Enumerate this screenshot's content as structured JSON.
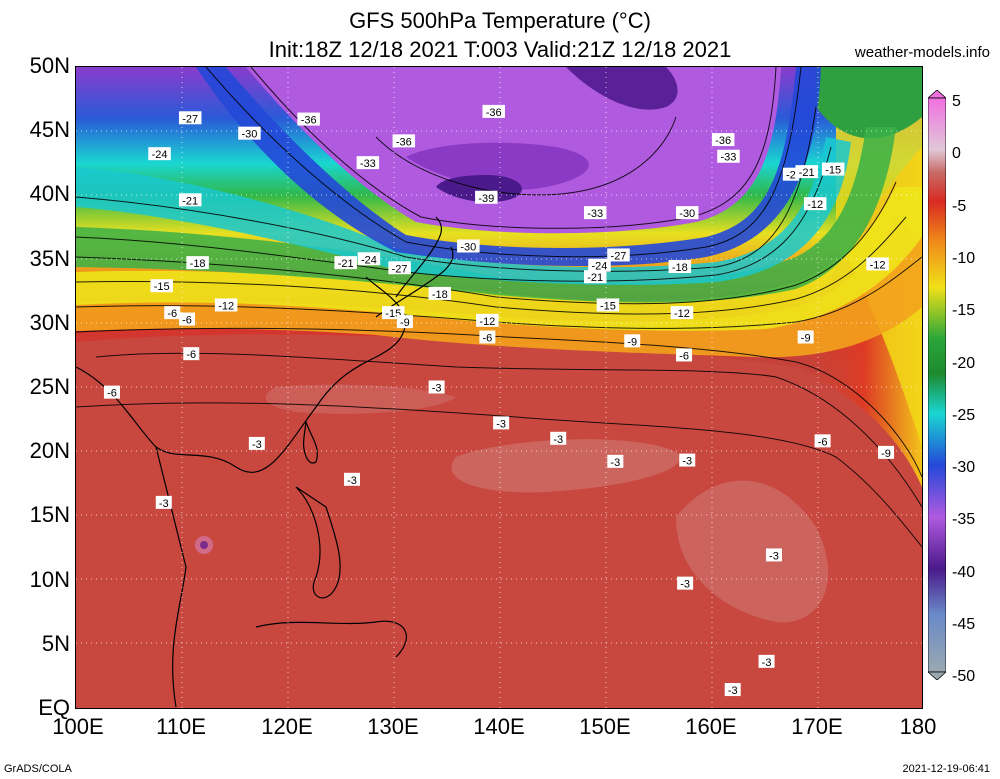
{
  "title_line1": "GFS 500hPa Temperature (°C)",
  "title_line2": "Init:18Z 12/18 2021 T:003 Valid:21Z 12/18 2021",
  "site": "weather-models.info",
  "footer_left": "GrADS/COLA",
  "footer_right": "2021-12-19-06:41",
  "lat_labels": [
    "50N",
    "45N",
    "40N",
    "35N",
    "30N",
    "25N",
    "20N",
    "15N",
    "10N",
    "5N",
    "EQ"
  ],
  "lon_labels": [
    "100E",
    "110E",
    "120E",
    "130E",
    "140E",
    "150E",
    "160E",
    "170E",
    "180"
  ],
  "colorbar_labels": [
    "5",
    "0",
    "-5",
    "-10",
    "-15",
    "-20",
    "-25",
    "-30",
    "-35",
    "-40",
    "-45",
    "-50"
  ],
  "colors": {
    "warm_dark": "#b94a44",
    "warm_mid": "#d8322a",
    "orange": "#f07a1a",
    "yellow": "#f2e60c",
    "green": "#22a43a",
    "cyan": "#1ad6d2",
    "blue": "#2448d8",
    "purple": "#a24ad6",
    "deep_purple": "#4a1a8a"
  },
  "contour_labels": [
    {
      "text": "-27",
      "lon": 110.8,
      "lat": 46.0
    },
    {
      "text": "-30",
      "lon": 116.4,
      "lat": 44.8
    },
    {
      "text": "-36",
      "lon": 122.0,
      "lat": 45.9
    },
    {
      "text": "-36",
      "lon": 139.5,
      "lat": 46.5
    },
    {
      "text": "-36",
      "lon": 131.0,
      "lat": 44.2
    },
    {
      "text": "-33",
      "lon": 127.6,
      "lat": 42.5
    },
    {
      "text": "-39",
      "lon": 138.8,
      "lat": 39.8
    },
    {
      "text": "-36",
      "lon": 161.2,
      "lat": 44.3
    },
    {
      "text": "-33",
      "lon": 161.7,
      "lat": 43.0
    },
    {
      "text": "-2",
      "lon": 167.6,
      "lat": 41.6
    },
    {
      "text": "-21",
      "lon": 169.1,
      "lat": 41.8
    },
    {
      "text": "-15",
      "lon": 171.6,
      "lat": 42.0
    },
    {
      "text": "-12",
      "lon": 169.9,
      "lat": 39.3
    },
    {
      "text": "-24",
      "lon": 107.9,
      "lat": 43.2
    },
    {
      "text": "-21",
      "lon": 110.8,
      "lat": 39.6
    },
    {
      "text": "-33",
      "lon": 149.1,
      "lat": 38.6
    },
    {
      "text": "-30",
      "lon": 157.8,
      "lat": 38.6
    },
    {
      "text": "-30",
      "lon": 137.1,
      "lat": 36.0
    },
    {
      "text": "-27",
      "lon": 151.3,
      "lat": 35.3
    },
    {
      "text": "-24",
      "lon": 149.5,
      "lat": 34.5
    },
    {
      "text": "-21",
      "lon": 149.1,
      "lat": 33.6
    },
    {
      "text": "-18",
      "lon": 157.1,
      "lat": 34.4
    },
    {
      "text": "-12",
      "lon": 175.8,
      "lat": 34.6
    },
    {
      "text": "-18",
      "lon": 111.5,
      "lat": 34.7
    },
    {
      "text": "-21",
      "lon": 125.5,
      "lat": 34.7
    },
    {
      "text": "-24",
      "lon": 127.7,
      "lat": 35.0
    },
    {
      "text": "-27",
      "lon": 130.6,
      "lat": 34.3
    },
    {
      "text": "-18",
      "lon": 134.4,
      "lat": 32.3
    },
    {
      "text": "-15",
      "lon": 108.1,
      "lat": 32.9
    },
    {
      "text": "-12",
      "lon": 114.2,
      "lat": 31.4
    },
    {
      "text": "-15",
      "lon": 150.3,
      "lat": 31.4
    },
    {
      "text": "-12",
      "lon": 157.3,
      "lat": 30.8
    },
    {
      "text": "-15",
      "lon": 130.0,
      "lat": 30.8
    },
    {
      "text": "-9",
      "lon": 131.1,
      "lat": 30.1
    },
    {
      "text": "-12",
      "lon": 138.9,
      "lat": 30.2
    },
    {
      "text": "-6",
      "lon": 109.1,
      "lat": 30.8
    },
    {
      "text": "-6",
      "lon": 110.5,
      "lat": 30.3
    },
    {
      "text": "-6",
      "lon": 138.9,
      "lat": 28.9
    },
    {
      "text": "-9",
      "lon": 152.6,
      "lat": 28.6
    },
    {
      "text": "-9",
      "lon": 169.0,
      "lat": 28.9
    },
    {
      "text": "-6",
      "lon": 110.9,
      "lat": 27.6
    },
    {
      "text": "-6",
      "lon": 157.5,
      "lat": 27.5
    },
    {
      "text": "-6",
      "lon": 103.4,
      "lat": 24.6
    },
    {
      "text": "-3",
      "lon": 134.1,
      "lat": 25.0
    },
    {
      "text": "-3",
      "lon": 140.2,
      "lat": 22.2
    },
    {
      "text": "-3",
      "lon": 145.6,
      "lat": 21.0
    },
    {
      "text": "-3",
      "lon": 117.1,
      "lat": 20.6
    },
    {
      "text": "-6",
      "lon": 170.6,
      "lat": 20.8
    },
    {
      "text": "-9",
      "lon": 176.6,
      "lat": 19.9
    },
    {
      "text": "-3",
      "lon": 151.0,
      "lat": 19.2
    },
    {
      "text": "-3",
      "lon": 157.8,
      "lat": 19.3
    },
    {
      "text": "-3",
      "lon": 126.1,
      "lat": 17.8
    },
    {
      "text": "-3",
      "lon": 108.3,
      "lat": 16.0
    },
    {
      "text": "-3",
      "lon": 166.0,
      "lat": 11.9
    },
    {
      "text": "-3",
      "lon": 157.6,
      "lat": 9.7
    },
    {
      "text": "-3",
      "lon": 165.3,
      "lat": 3.6
    },
    {
      "text": "-3",
      "lon": 162.1,
      "lat": 1.4
    }
  ]
}
